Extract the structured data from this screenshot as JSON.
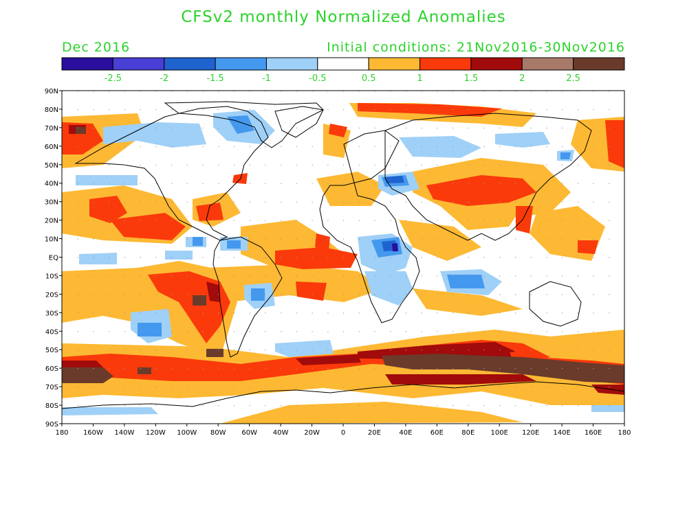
{
  "title": "CFSv2 monthly Normalized Anomalies",
  "month": "Dec 2016",
  "initial_conditions": "Initial conditions: 21Nov2016-30Nov2016",
  "colorbar": {
    "colors": [
      "#2a0e9e",
      "#4a3fd4",
      "#1f63cf",
      "#4499ee",
      "#9fd0f7",
      "#ffffff",
      "#fdb933",
      "#fa3a0a",
      "#a10b0b",
      "#a87a6a",
      "#6a3b2b"
    ],
    "labels": [
      "-2.5",
      "-2",
      "-1.5",
      "-1",
      "-0.5",
      "0.5",
      "1",
      "1.5",
      "2",
      "2.5"
    ]
  },
  "axes": {
    "lat_labels": [
      "90N",
      "80N",
      "70N",
      "60N",
      "50N",
      "40N",
      "30N",
      "20N",
      "10N",
      "EQ",
      "10S",
      "20S",
      "30S",
      "40S",
      "50S",
      "60S",
      "70S",
      "80S",
      "90S"
    ],
    "lon_labels": [
      "180",
      "160W",
      "140W",
      "120W",
      "100W",
      "80W",
      "60W",
      "40W",
      "20W",
      "0",
      "20E",
      "40E",
      "60E",
      "80E",
      "100E",
      "120E",
      "140E",
      "160E",
      "180"
    ]
  }
}
